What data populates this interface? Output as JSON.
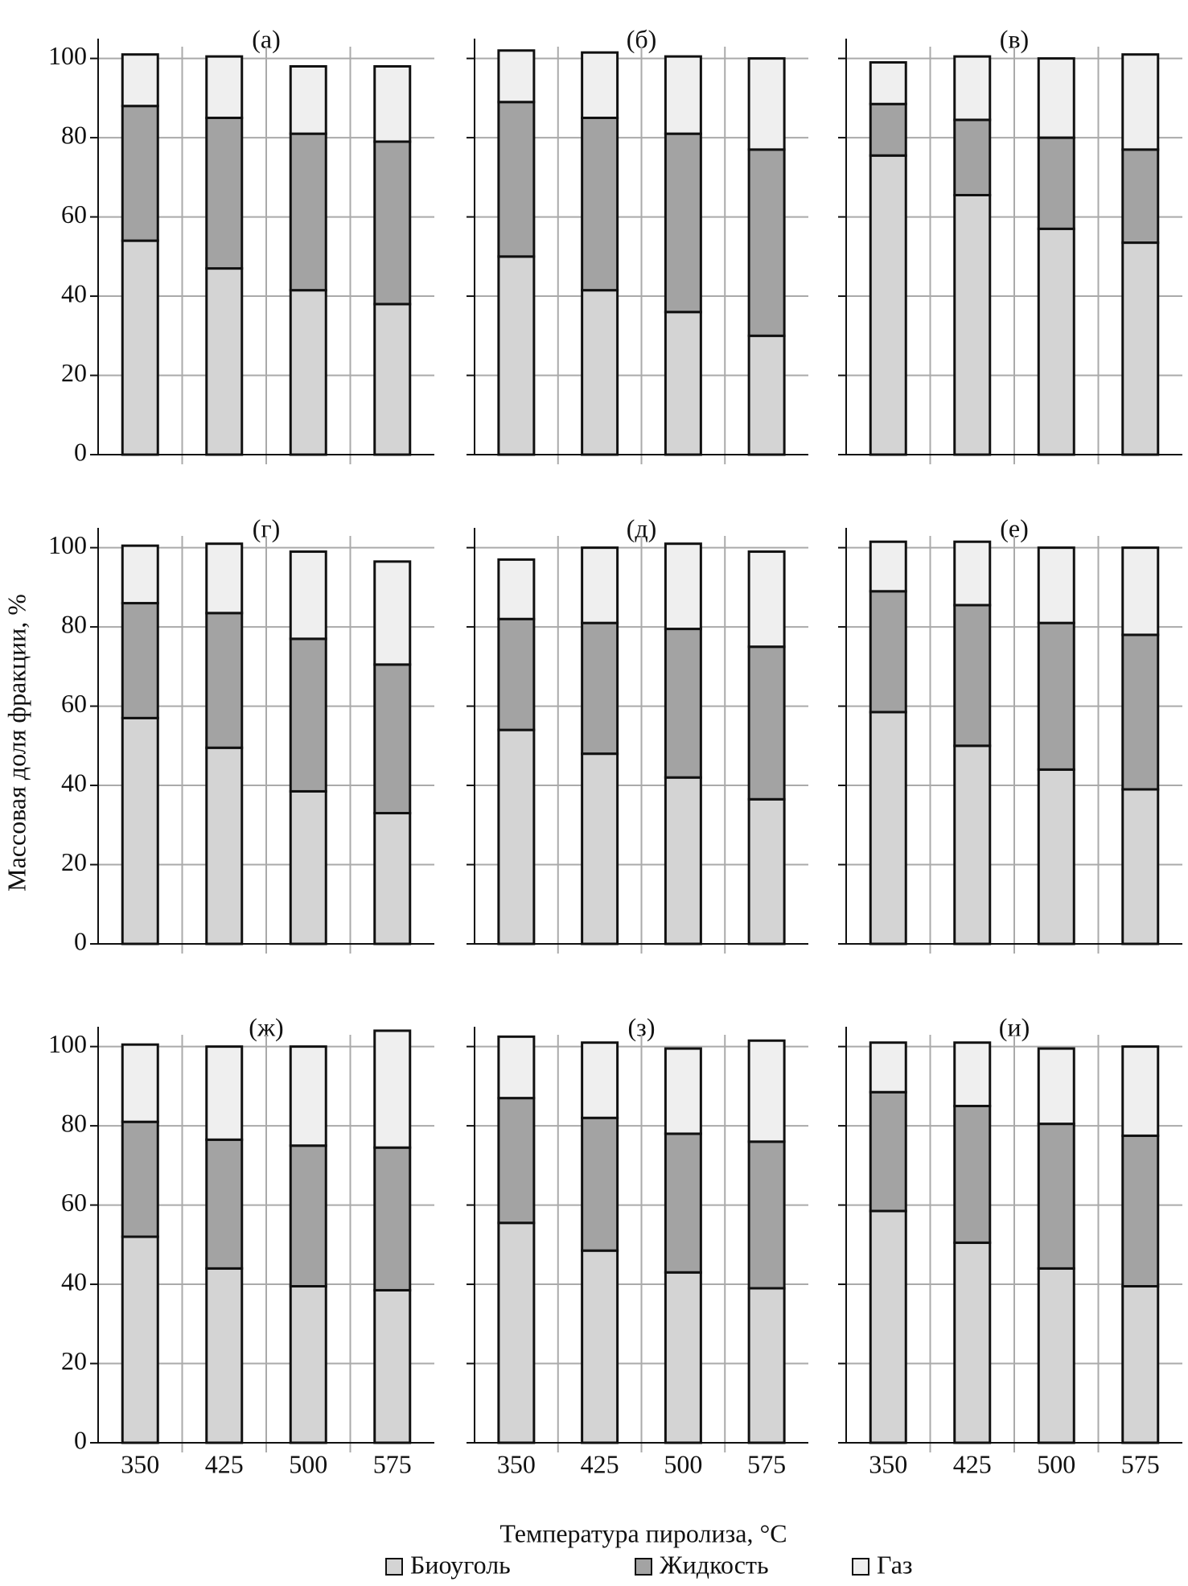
{
  "y_label": "Массовая доля фракции, %",
  "x_label": "Температура пиролиза, °C",
  "legend": [
    {
      "name": "Биоуголь",
      "color": "#d4d4d4"
    },
    {
      "name": "Жидкость",
      "color": "#a3a3a3"
    },
    {
      "name": "Газ",
      "color": "#efefef"
    }
  ],
  "chart_data": [
    {
      "type": "bar",
      "stacked": true,
      "title": "(а)",
      "categories": [
        null,
        null,
        null,
        null
      ],
      "series": [
        {
          "values": [
            54,
            47,
            41.5,
            38
          ]
        },
        {
          "values": [
            34,
            38,
            39.5,
            41
          ]
        },
        {
          "values": [
            13,
            15.5,
            17,
            19
          ]
        }
      ],
      "ylim": [
        0,
        105
      ],
      "yticks": [
        0,
        20,
        40,
        60,
        80,
        100
      ],
      "grid": true
    },
    {
      "type": "bar",
      "stacked": true,
      "title": "(б)",
      "categories": [
        null,
        null,
        null,
        null
      ],
      "series": [
        {
          "values": [
            50,
            41.5,
            36,
            30
          ]
        },
        {
          "values": [
            39,
            43.5,
            45,
            47
          ]
        },
        {
          "values": [
            13,
            16.5,
            19.5,
            23
          ]
        }
      ],
      "ylim": [
        0,
        105
      ],
      "yticks": [
        0,
        20,
        40,
        60,
        80,
        100
      ],
      "grid": true
    },
    {
      "type": "bar",
      "stacked": true,
      "title": "(в)",
      "categories": [
        null,
        null,
        null,
        null
      ],
      "series": [
        {
          "values": [
            75.5,
            65.5,
            57,
            53.5
          ]
        },
        {
          "values": [
            13,
            19,
            23,
            23.5
          ]
        },
        {
          "values": [
            10.5,
            16,
            20,
            24
          ]
        }
      ],
      "ylim": [
        0,
        105
      ],
      "yticks": [
        0,
        20,
        40,
        60,
        80,
        100
      ],
      "grid": true
    },
    {
      "type": "bar",
      "stacked": true,
      "title": "(г)",
      "categories": [
        null,
        null,
        null,
        null
      ],
      "series": [
        {
          "values": [
            57,
            49.5,
            38.5,
            33
          ]
        },
        {
          "values": [
            29,
            34,
            38.5,
            37.5
          ]
        },
        {
          "values": [
            14.5,
            17.5,
            22,
            26
          ]
        }
      ],
      "ylim": [
        0,
        105
      ],
      "yticks": [
        0,
        20,
        40,
        60,
        80,
        100
      ],
      "grid": true
    },
    {
      "type": "bar",
      "stacked": true,
      "title": "(д)",
      "categories": [
        null,
        null,
        null,
        null
      ],
      "series": [
        {
          "values": [
            54,
            48,
            42,
            36.5
          ]
        },
        {
          "values": [
            28,
            33,
            37.5,
            38.5
          ]
        },
        {
          "values": [
            15,
            19,
            21.5,
            24
          ]
        }
      ],
      "ylim": [
        0,
        105
      ],
      "yticks": [
        0,
        20,
        40,
        60,
        80,
        100
      ],
      "grid": true
    },
    {
      "type": "bar",
      "stacked": true,
      "title": "(е)",
      "categories": [
        null,
        null,
        null,
        null
      ],
      "series": [
        {
          "values": [
            58.5,
            50,
            44,
            39
          ]
        },
        {
          "values": [
            30.5,
            35.5,
            37,
            39
          ]
        },
        {
          "values": [
            12.5,
            16,
            19,
            22
          ]
        }
      ],
      "ylim": [
        0,
        105
      ],
      "yticks": [
        0,
        20,
        40,
        60,
        80,
        100
      ],
      "grid": true
    },
    {
      "type": "bar",
      "stacked": true,
      "title": "(ж)",
      "categories": [
        "350",
        "425",
        "500",
        "575"
      ],
      "series": [
        {
          "values": [
            52,
            44,
            39.5,
            38.5
          ]
        },
        {
          "values": [
            29,
            32.5,
            35.5,
            36
          ]
        },
        {
          "values": [
            19.5,
            23.5,
            25,
            29.5
          ]
        }
      ],
      "ylim": [
        0,
        105
      ],
      "yticks": [
        0,
        20,
        40,
        60,
        80,
        100
      ],
      "grid": true
    },
    {
      "type": "bar",
      "stacked": true,
      "title": "(з)",
      "categories": [
        "350",
        "425",
        "500",
        "575"
      ],
      "series": [
        {
          "values": [
            55.5,
            48.5,
            43,
            39
          ]
        },
        {
          "values": [
            31.5,
            33.5,
            35,
            37
          ]
        },
        {
          "values": [
            15.5,
            19,
            21.5,
            25.5
          ]
        }
      ],
      "ylim": [
        0,
        105
      ],
      "yticks": [
        0,
        20,
        40,
        60,
        80,
        100
      ],
      "grid": true
    },
    {
      "type": "bar",
      "stacked": true,
      "title": "(и)",
      "categories": [
        "350",
        "425",
        "500",
        "575"
      ],
      "series": [
        {
          "values": [
            58.5,
            50.5,
            44,
            39.5
          ]
        },
        {
          "values": [
            30,
            34.5,
            36.5,
            38
          ]
        },
        {
          "values": [
            12.5,
            16,
            19,
            22.5
          ]
        }
      ],
      "ylim": [
        0,
        105
      ],
      "yticks": [
        0,
        20,
        40,
        60,
        80,
        100
      ],
      "grid": true
    }
  ]
}
